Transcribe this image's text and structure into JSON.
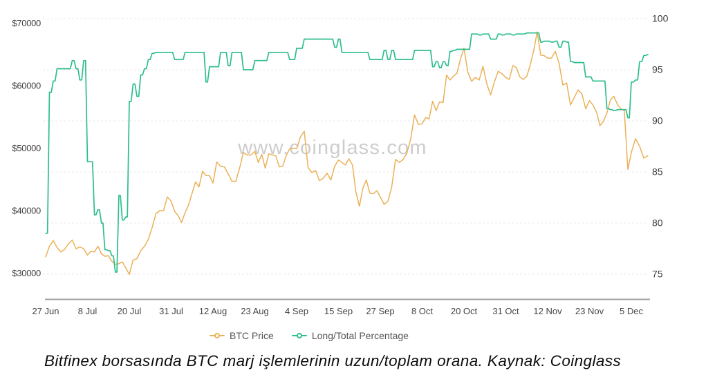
{
  "watermark": "www.coinglass.com",
  "caption": "Bitfinex borsasında BTC marj işlemlerinin uzun/toplam orana. Kaynak: Coinglass",
  "legend": [
    {
      "label": "BTC Price",
      "color": "#eab157"
    },
    {
      "label": "Long/Total Percentage",
      "color": "#2cbe8c"
    }
  ],
  "chart_data": {
    "type": "line",
    "title": "",
    "x_unit": "day",
    "x_tick_labels": [
      {
        "label": "27 Jun",
        "day": 0
      },
      {
        "label": "8 Jul",
        "day": 11
      },
      {
        "label": "20 Jul",
        "day": 23
      },
      {
        "label": "31 Jul",
        "day": 34
      },
      {
        "label": "12 Aug",
        "day": 46
      },
      {
        "label": "23 Aug",
        "day": 57
      },
      {
        "label": "4 Sep",
        "day": 69
      },
      {
        "label": "15 Sep",
        "day": 80
      },
      {
        "label": "27 Sep",
        "day": 92
      },
      {
        "label": "8 Oct",
        "day": 103
      },
      {
        "label": "20 Oct",
        "day": 115
      },
      {
        "label": "31 Oct",
        "day": 126
      },
      {
        "label": "12 Nov",
        "day": 138
      },
      {
        "label": "23 Nov",
        "day": 149
      },
      {
        "label": "5 Dec",
        "day": 161
      }
    ],
    "y_axis_left": {
      "tick_labels": [
        "$70000",
        "$60000",
        "$50000",
        "$40000",
        "$30000"
      ],
      "tick_values": [
        70000,
        60000,
        50000,
        40000,
        30000
      ]
    },
    "y_axis_right": {
      "tick_labels": [
        "100",
        "95",
        "90",
        "85",
        "80",
        "75"
      ],
      "tick_values": [
        100,
        95,
        90,
        85,
        80,
        75
      ]
    },
    "series": [
      {
        "name": "BTC Price",
        "axis": "left",
        "color": "#eab157",
        "values": [
          32600,
          34300,
          35200,
          34100,
          33400,
          33800,
          34700,
          35300,
          33900,
          34200,
          33900,
          32900,
          33500,
          33400,
          34300,
          33100,
          32700,
          32800,
          31900,
          31400,
          31500,
          31800,
          30800,
          29800,
          32100,
          32300,
          33600,
          34300,
          35400,
          37300,
          39500,
          40000,
          40000,
          42200,
          41500,
          39900,
          39200,
          38100,
          39700,
          40900,
          42800,
          44600,
          43800,
          46300,
          45600,
          45600,
          44400,
          47800,
          47100,
          47000,
          45900,
          44700,
          44700,
          46800,
          49300,
          48900,
          48900,
          49500,
          47700,
          49000,
          46800,
          49100,
          48900,
          48800,
          47000,
          47100,
          48800,
          49900,
          50000,
          49900,
          51800,
          52700,
          46900,
          46100,
          46400,
          44800,
          45200,
          46000,
          44900,
          47100,
          48100,
          47700,
          47300,
          48300,
          47300,
          43000,
          40700,
          43600,
          44900,
          42800,
          42700,
          43200,
          42200,
          41000,
          41500,
          43800,
          48200,
          47700,
          48200,
          49200,
          51500,
          55300,
          53800,
          53900,
          54900,
          54700,
          57500,
          56000,
          57400,
          57300,
          61700,
          60900,
          61500,
          62000,
          64300,
          66000,
          62200,
          60700,
          61300,
          60900,
          63100,
          60300,
          58500,
          60600,
          62300,
          61900,
          61300,
          61000,
          63200,
          62900,
          61400,
          61000,
          61500,
          63300,
          65600,
          68600,
          64900,
          64800,
          64400,
          64400,
          65500,
          63600,
          60100,
          60400,
          56900,
          58100,
          59300,
          58700,
          56300,
          57600,
          56900,
          55800,
          53600,
          54300,
          55600,
          57700,
          58300,
          57000,
          56300,
          56000,
          46600,
          49300,
          51500,
          50300,
          48400,
          48800
        ]
      },
      {
        "name": "Long/Total Percentage",
        "axis": "right",
        "color": "#2cbe8c",
        "values": [
          79.0,
          92.8,
          93.9,
          95.1,
          95.1,
          95.1,
          95.1,
          95.9,
          95.1,
          94.0,
          95.9,
          86.0,
          86.0,
          80.8,
          81.3,
          80.0,
          77.4,
          77.3,
          76.8,
          75.2,
          82.7,
          80.3,
          80.6,
          91.9,
          93.6,
          92.4,
          94.5,
          95.1,
          96.0,
          96.6,
          96.7,
          96.7,
          96.7,
          96.7,
          96.7,
          96.0,
          96.0,
          96.0,
          96.7,
          96.7,
          96.7,
          96.7,
          96.7,
          96.7,
          93.8,
          95.3,
          95.3,
          95.3,
          96.7,
          96.7,
          95.4,
          96.7,
          96.7,
          96.7,
          95.0,
          95.0,
          95.0,
          95.9,
          95.9,
          95.9,
          95.9,
          96.7,
          96.7,
          96.7,
          96.7,
          96.7,
          96.7,
          96.0,
          96.0,
          97.1,
          97.1,
          98.0,
          98.0,
          98.0,
          98.0,
          98.0,
          98.0,
          98.0,
          98.0,
          97.2,
          98.0,
          96.7,
          96.7,
          96.7,
          96.7,
          96.7,
          96.7,
          96.7,
          96.7,
          96.0,
          96.0,
          96.0,
          96.0,
          96.9,
          96.0,
          96.9,
          96.0,
          96.0,
          96.0,
          96.0,
          96.0,
          96.9,
          96.9,
          96.9,
          96.9,
          96.9,
          95.3,
          95.8,
          95.2,
          95.8,
          95.4,
          96.8,
          96.9,
          97.0,
          97.0,
          97.0,
          97.0,
          98.5,
          98.5,
          98.4,
          98.5,
          98.5,
          98.0,
          98.0,
          98.5,
          98.4,
          98.5,
          98.5,
          98.4,
          98.5,
          98.5,
          98.5,
          98.6,
          98.6,
          98.6,
          98.6,
          97.7,
          97.8,
          97.8,
          97.7,
          97.8,
          97.2,
          97.8,
          97.7,
          95.8,
          95.7,
          95.7,
          95.7,
          94.3,
          94.3,
          93.9,
          93.9,
          93.9,
          93.9,
          91.2,
          91.1,
          91.0,
          91.1,
          91.1,
          91.1,
          90.3,
          93.8,
          94.0,
          95.8,
          96.4,
          96.5
        ]
      }
    ]
  }
}
